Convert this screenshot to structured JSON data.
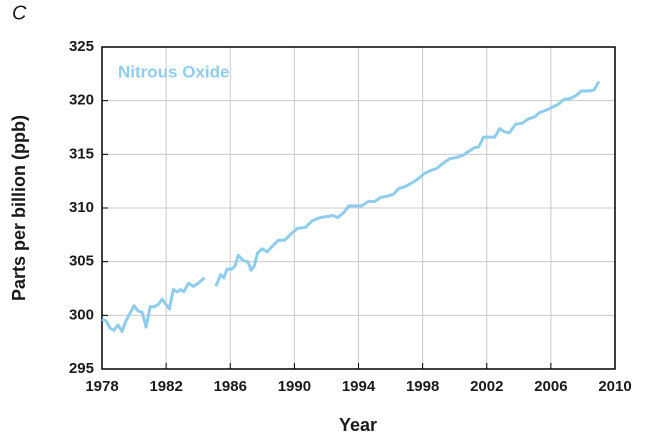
{
  "chart_data": {
    "type": "line",
    "label": "C",
    "annotation": "Nitrous Oxide",
    "xlabel": "Year",
    "ylabel": "Parts per billion (ppb)",
    "xlim": [
      1978,
      2010
    ],
    "xticks": [
      1978,
      1982,
      1986,
      1990,
      1994,
      1998,
      2002,
      2006,
      2010
    ],
    "ylim": [
      295,
      325
    ],
    "yticks": [
      295,
      300,
      305,
      310,
      315,
      320,
      325
    ],
    "grid": true,
    "x": [
      1978.0,
      1978.25,
      1978.5,
      1978.75,
      1979.0,
      1979.25,
      1979.5,
      1979.75,
      1980.0,
      1980.25,
      1980.5,
      1980.75,
      1981.0,
      1981.25,
      1981.5,
      1981.75,
      1982.0,
      1982.2,
      1982.45,
      1982.7,
      1982.9,
      1983.1,
      1983.4,
      1983.7,
      1984.0,
      1984.4,
      1984.7,
      1985.1,
      1985.4,
      1985.6,
      1985.8,
      1986.1,
      1986.3,
      1986.5,
      1986.8,
      1987.1,
      1987.3,
      1987.5,
      1987.7,
      1988.0,
      1988.3,
      1988.6,
      1989.0,
      1989.4,
      1989.8,
      1990.2,
      1990.7,
      1991.1,
      1991.6,
      1992.0,
      1992.4,
      1992.7,
      1993.1,
      1993.4,
      1993.8,
      1994.2,
      1994.6,
      1995.0,
      1995.4,
      1995.8,
      1996.2,
      1996.5,
      1996.9,
      1997.3,
      1997.7,
      1998.1,
      1998.5,
      1998.9,
      1999.3,
      1999.7,
      2000.1,
      2000.5,
      2000.9,
      2001.2,
      2001.5,
      2001.8,
      2002.2,
      2002.5,
      2002.8,
      2003.1,
      2003.4,
      2003.8,
      2004.2,
      2004.6,
      2005.0,
      2005.3,
      2005.7,
      2006.1,
      2006.5,
      2006.8,
      2007.2,
      2007.6,
      2007.9,
      2008.3,
      2008.7,
      2009.0
    ],
    "series": [
      {
        "name": "Nitrous Oxide",
        "color": "#8ecdec",
        "values": [
          299.6,
          299.5,
          298.8,
          298.6,
          299.1,
          298.5,
          299.5,
          300.2,
          300.9,
          300.4,
          300.3,
          298.9,
          300.8,
          300.8,
          301.0,
          301.5,
          301.0,
          300.6,
          302.4,
          302.2,
          302.4,
          302.2,
          303.0,
          302.7,
          303.0,
          303.5,
          null,
          302.7,
          303.8,
          303.5,
          304.3,
          304.3,
          304.6,
          305.6,
          305.1,
          305.0,
          304.2,
          304.6,
          305.8,
          306.2,
          305.9,
          306.4,
          307.0,
          307.0,
          307.6,
          308.1,
          308.2,
          308.8,
          309.1,
          309.2,
          309.3,
          309.1,
          309.6,
          310.2,
          310.2,
          310.2,
          310.6,
          310.6,
          311.0,
          311.1,
          311.3,
          311.8,
          312.0,
          312.3,
          312.7,
          313.2,
          313.5,
          313.7,
          314.2,
          314.6,
          314.7,
          314.9,
          315.3,
          315.6,
          315.7,
          316.6,
          316.6,
          316.6,
          317.4,
          317.1,
          317.0,
          317.8,
          317.9,
          318.3,
          318.5,
          318.9,
          319.1,
          319.4,
          319.7,
          320.1,
          320.2,
          320.5,
          320.9,
          320.9,
          321.0,
          321.8
        ]
      }
    ]
  }
}
